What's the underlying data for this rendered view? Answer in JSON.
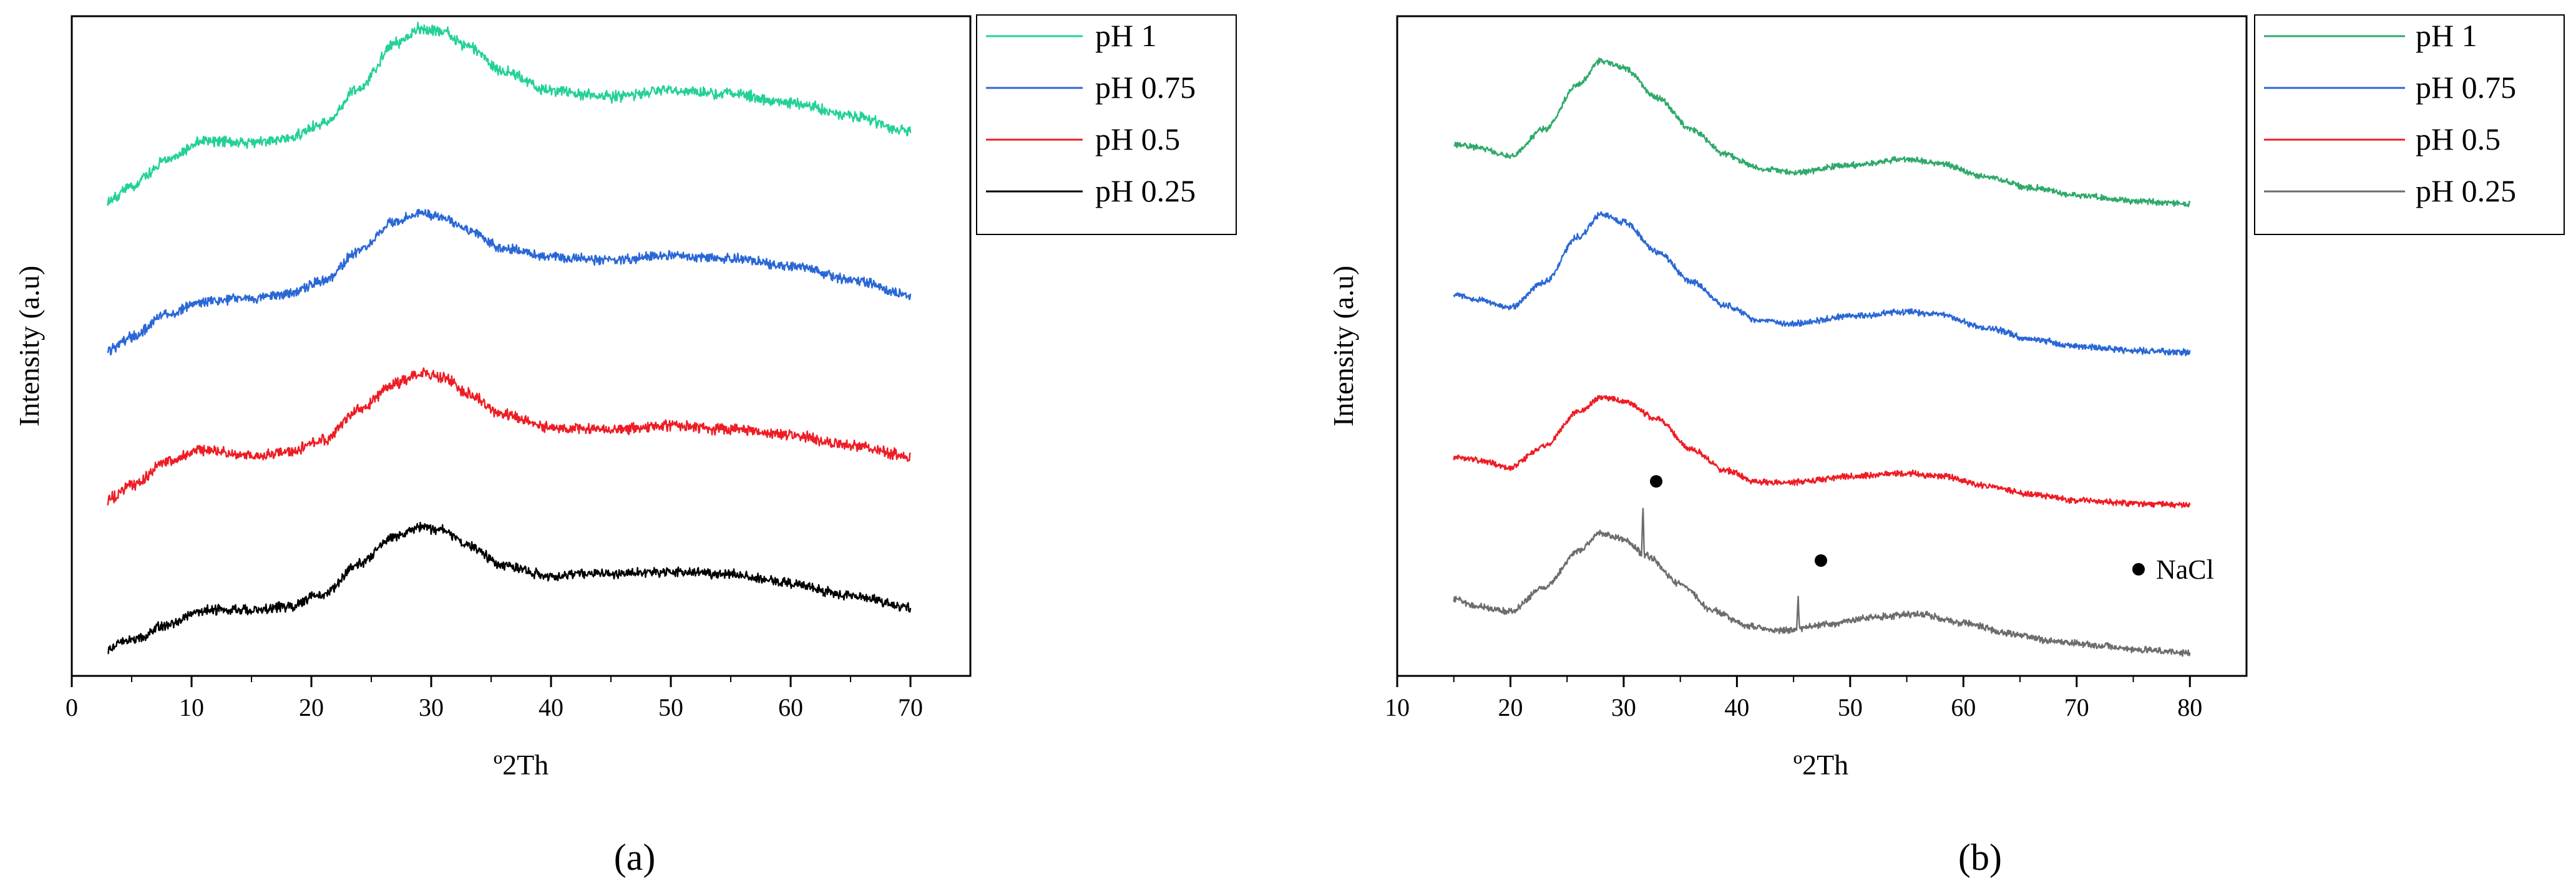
{
  "colors": {
    "green": "#23d197",
    "blue": "#2a67d6",
    "red": "#ee1c24",
    "black": "#000000",
    "gray": "#6c6c6c",
    "tealgreen": "#2fa96b"
  },
  "chart_data": [
    {
      "type": "line",
      "panel_label": "(a)",
      "xlabel": "º2Th",
      "ylabel": "Intensity (a.u)",
      "xlim": [
        0,
        75
      ],
      "x_ticks": [
        0,
        10,
        20,
        30,
        40,
        50,
        60,
        70
      ],
      "series": [
        {
          "name": "pH 1",
          "color": "#23d197",
          "offset": 3.0,
          "noise": 0.055,
          "points": [
            [
              3,
              0.05
            ],
            [
              5,
              0.16
            ],
            [
              8,
              0.34
            ],
            [
              11,
              0.46
            ],
            [
              15,
              0.45
            ],
            [
              18,
              0.48
            ],
            [
              21,
              0.58
            ],
            [
              24,
              0.82
            ],
            [
              27,
              1.12
            ],
            [
              29,
              1.22
            ],
            [
              31,
              1.2
            ],
            [
              33,
              1.1
            ],
            [
              36,
              0.93
            ],
            [
              40,
              0.8
            ],
            [
              45,
              0.76
            ],
            [
              50,
              0.8
            ],
            [
              55,
              0.78
            ],
            [
              60,
              0.72
            ],
            [
              65,
              0.63
            ],
            [
              70,
              0.53
            ]
          ]
        },
        {
          "name": "pH 0.75",
          "color": "#2a67d6",
          "offset": 2.0,
          "noise": 0.05,
          "points": [
            [
              3,
              0.05
            ],
            [
              5,
              0.14
            ],
            [
              8,
              0.3
            ],
            [
              11,
              0.38
            ],
            [
              15,
              0.4
            ],
            [
              18,
              0.43
            ],
            [
              21,
              0.52
            ],
            [
              24,
              0.72
            ],
            [
              27,
              0.92
            ],
            [
              29,
              0.98
            ],
            [
              31,
              0.95
            ],
            [
              33,
              0.86
            ],
            [
              36,
              0.74
            ],
            [
              40,
              0.68
            ],
            [
              45,
              0.66
            ],
            [
              50,
              0.69
            ],
            [
              55,
              0.67
            ],
            [
              60,
              0.62
            ],
            [
              65,
              0.53
            ],
            [
              70,
              0.42
            ]
          ]
        },
        {
          "name": "pH 0.5",
          "color": "#ee1c24",
          "offset": 1.0,
          "noise": 0.055,
          "points": [
            [
              3,
              0.05
            ],
            [
              5,
              0.14
            ],
            [
              8,
              0.3
            ],
            [
              11,
              0.38
            ],
            [
              15,
              0.34
            ],
            [
              18,
              0.36
            ],
            [
              21,
              0.45
            ],
            [
              24,
              0.65
            ],
            [
              27,
              0.83
            ],
            [
              29,
              0.9
            ],
            [
              31,
              0.87
            ],
            [
              33,
              0.76
            ],
            [
              36,
              0.62
            ],
            [
              40,
              0.53
            ],
            [
              45,
              0.52
            ],
            [
              50,
              0.54
            ],
            [
              55,
              0.52
            ],
            [
              60,
              0.48
            ],
            [
              65,
              0.41
            ],
            [
              70,
              0.34
            ]
          ]
        },
        {
          "name": "pH 0.25",
          "color": "#000000",
          "offset": 0.0,
          "noise": 0.05,
          "points": [
            [
              3,
              0.04
            ],
            [
              5,
              0.1
            ],
            [
              8,
              0.2
            ],
            [
              11,
              0.3
            ],
            [
              15,
              0.3
            ],
            [
              18,
              0.32
            ],
            [
              21,
              0.41
            ],
            [
              24,
              0.61
            ],
            [
              27,
              0.8
            ],
            [
              29,
              0.86
            ],
            [
              31,
              0.84
            ],
            [
              33,
              0.74
            ],
            [
              36,
              0.6
            ],
            [
              40,
              0.53
            ],
            [
              45,
              0.55
            ],
            [
              50,
              0.56
            ],
            [
              55,
              0.54
            ],
            [
              60,
              0.48
            ],
            [
              65,
              0.4
            ],
            [
              70,
              0.32
            ]
          ]
        }
      ]
    },
    {
      "type": "line",
      "panel_label": "(b)",
      "xlabel": "º2Th",
      "ylabel": "Intensity (a.u)",
      "xlim": [
        10,
        85
      ],
      "x_ticks": [
        10,
        20,
        30,
        40,
        50,
        60,
        70,
        80
      ],
      "annotation": "NaCl",
      "series": [
        {
          "name": "pH 1",
          "color": "#2fa96b",
          "offset": 3.0,
          "noise": 0.03,
          "points": [
            [
              15,
              0.42
            ],
            [
              17,
              0.4
            ],
            [
              20,
              0.34
            ],
            [
              23,
              0.52
            ],
            [
              26,
              0.82
            ],
            [
              28,
              0.98
            ],
            [
              30,
              0.93
            ],
            [
              33,
              0.73
            ],
            [
              36,
              0.52
            ],
            [
              39,
              0.35
            ],
            [
              42,
              0.26
            ],
            [
              45,
              0.23
            ],
            [
              50,
              0.28
            ],
            [
              55,
              0.32
            ],
            [
              58,
              0.29
            ],
            [
              62,
              0.2
            ],
            [
              66,
              0.13
            ],
            [
              70,
              0.08
            ],
            [
              75,
              0.04
            ],
            [
              80,
              0.02
            ]
          ]
        },
        {
          "name": "pH 0.75",
          "color": "#2a67d6",
          "offset": 2.0,
          "noise": 0.03,
          "points": [
            [
              15,
              0.42
            ],
            [
              17,
              0.38
            ],
            [
              20,
              0.33
            ],
            [
              23,
              0.5
            ],
            [
              26,
              0.8
            ],
            [
              28,
              0.95
            ],
            [
              30,
              0.9
            ],
            [
              33,
              0.7
            ],
            [
              36,
              0.5
            ],
            [
              39,
              0.34
            ],
            [
              42,
              0.24
            ],
            [
              45,
              0.22
            ],
            [
              50,
              0.27
            ],
            [
              55,
              0.3
            ],
            [
              58,
              0.28
            ],
            [
              62,
              0.19
            ],
            [
              66,
              0.12
            ],
            [
              70,
              0.07
            ],
            [
              75,
              0.04
            ],
            [
              80,
              0.03
            ]
          ]
        },
        {
          "name": "pH 0.5",
          "color": "#ee1c24",
          "offset": 1.0,
          "noise": 0.03,
          "points": [
            [
              15,
              0.33
            ],
            [
              17,
              0.31
            ],
            [
              20,
              0.26
            ],
            [
              23,
              0.4
            ],
            [
              26,
              0.63
            ],
            [
              28,
              0.73
            ],
            [
              30,
              0.7
            ],
            [
              33,
              0.58
            ],
            [
              36,
              0.38
            ],
            [
              39,
              0.24
            ],
            [
              42,
              0.16
            ],
            [
              45,
              0.16
            ],
            [
              50,
              0.2
            ],
            [
              55,
              0.22
            ],
            [
              58,
              0.2
            ],
            [
              62,
              0.14
            ],
            [
              66,
              0.08
            ],
            [
              70,
              0.04
            ],
            [
              75,
              0.02
            ],
            [
              80,
              0.01
            ]
          ]
        },
        {
          "name": "pH 0.25",
          "color": "#6c6c6c",
          "offset": 0.0,
          "noise": 0.032,
          "points": [
            [
              15,
              0.38
            ],
            [
              17,
              0.33
            ],
            [
              20,
              0.3
            ],
            [
              23,
              0.46
            ],
            [
              26,
              0.7
            ],
            [
              28,
              0.82
            ],
            [
              30,
              0.78
            ],
            [
              32,
              0.67
            ],
            [
              35,
              0.48
            ],
            [
              38,
              0.3
            ],
            [
              41,
              0.2
            ],
            [
              44,
              0.17
            ],
            [
              48,
              0.21
            ],
            [
              52,
              0.26
            ],
            [
              56,
              0.28
            ],
            [
              60,
              0.22
            ],
            [
              64,
              0.15
            ],
            [
              68,
              0.1
            ],
            [
              72,
              0.07
            ],
            [
              76,
              0.04
            ],
            [
              80,
              0.02
            ]
          ],
          "spikes": [
            [
              31.7,
              0.35
            ],
            [
              45.4,
              0.21
            ]
          ]
        }
      ]
    }
  ]
}
